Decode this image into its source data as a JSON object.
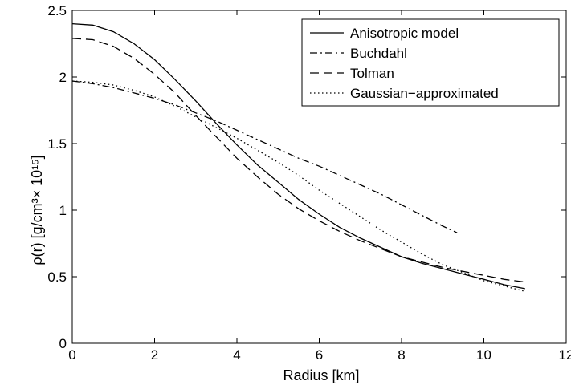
{
  "chart_data": {
    "type": "line",
    "title": "",
    "xlabel": "Radius [km]",
    "ylabel": "ρ(r) [g/cm³× 10¹⁵]",
    "xlim": [
      0,
      12
    ],
    "ylim": [
      0,
      2.5
    ],
    "xticks": [
      0,
      2,
      4,
      6,
      8,
      10,
      12
    ],
    "yticks": [
      0,
      0.5,
      1,
      1.5,
      2,
      2.5
    ],
    "xtick_labels": [
      "0",
      "2",
      "4",
      "6",
      "8",
      "10",
      "12"
    ],
    "ytick_labels": [
      "0",
      "0.5",
      "1",
      "1.5",
      "2",
      "2.5"
    ],
    "grid": false,
    "legend_position": "top-right",
    "series": [
      {
        "name": "Anisotropic model",
        "style": "solid",
        "x": [
          0,
          0.5,
          1,
          1.5,
          2,
          2.5,
          3,
          3.5,
          4,
          4.5,
          5,
          5.5,
          6,
          6.5,
          7,
          7.5,
          8,
          8.5,
          9,
          9.5,
          10,
          10.5,
          11
        ],
        "y": [
          2.4,
          2.39,
          2.34,
          2.25,
          2.13,
          1.98,
          1.82,
          1.65,
          1.49,
          1.34,
          1.21,
          1.08,
          0.97,
          0.87,
          0.79,
          0.72,
          0.65,
          0.6,
          0.56,
          0.52,
          0.48,
          0.44,
          0.41
        ]
      },
      {
        "name": "Buchdahl",
        "style": "dashdot",
        "x": [
          0,
          0.5,
          1,
          1.5,
          2,
          2.5,
          3,
          3.5,
          4,
          4.5,
          5,
          5.5,
          6,
          6.5,
          7,
          7.5,
          8,
          8.5,
          9,
          9.35
        ],
        "y": [
          1.97,
          1.95,
          1.92,
          1.88,
          1.84,
          1.79,
          1.73,
          1.67,
          1.6,
          1.53,
          1.46,
          1.39,
          1.33,
          1.26,
          1.19,
          1.12,
          1.04,
          0.96,
          0.88,
          0.83
        ]
      },
      {
        "name": "Tolman",
        "style": "dashed",
        "x": [
          0,
          0.5,
          1,
          1.5,
          2,
          2.5,
          3,
          3.5,
          4,
          4.5,
          5,
          5.5,
          6,
          6.5,
          7,
          7.5,
          8,
          8.5,
          9,
          9.5,
          10,
          10.5,
          11
        ],
        "y": [
          2.29,
          2.28,
          2.23,
          2.14,
          2.02,
          1.88,
          1.71,
          1.55,
          1.39,
          1.25,
          1.12,
          1.01,
          0.92,
          0.84,
          0.77,
          0.71,
          0.65,
          0.61,
          0.57,
          0.54,
          0.51,
          0.48,
          0.46
        ]
      },
      {
        "name": "Gaussian−approximated",
        "style": "dotted",
        "x": [
          0,
          0.5,
          1,
          1.5,
          2,
          2.5,
          3,
          3.5,
          4,
          4.5,
          5,
          5.5,
          6,
          6.5,
          7,
          7.5,
          8,
          8.5,
          9,
          9.5,
          10,
          10.5,
          11
        ],
        "y": [
          1.97,
          1.96,
          1.94,
          1.9,
          1.85,
          1.78,
          1.7,
          1.62,
          1.54,
          1.45,
          1.36,
          1.26,
          1.15,
          1.05,
          0.95,
          0.85,
          0.76,
          0.67,
          0.59,
          0.53,
          0.47,
          0.43,
          0.39
        ]
      }
    ]
  }
}
